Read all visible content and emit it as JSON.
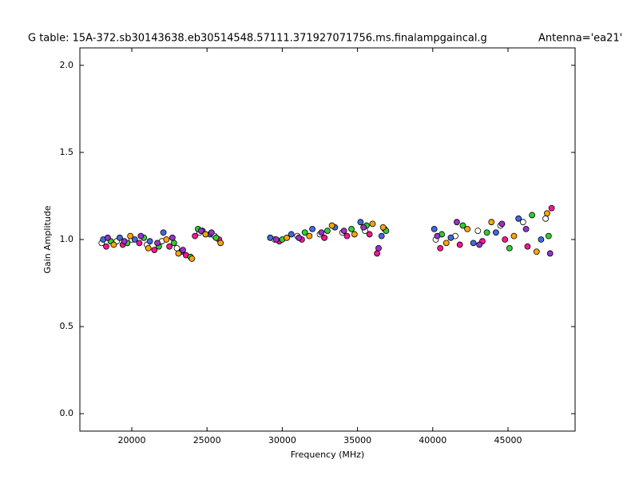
{
  "chart_data": {
    "type": "scatter",
    "title": "G table: 15A-372.sb30143638.eb30514548.57111.371927071756.ms.finalampgaincal.g",
    "annotation": "Antenna='ea21'",
    "x_label": "Frequency (MHz)",
    "y_label": "Gain Amplitude",
    "xlim": [
      16550,
      49460
    ],
    "ylim": [
      -0.1,
      2.1
    ],
    "xticks": [
      20000,
      25000,
      30000,
      35000,
      40000,
      45000
    ],
    "yticks": [
      {
        "value": 0,
        "label": "0.0"
      },
      {
        "value": 0.5,
        "label": "0.5"
      },
      {
        "value": 1,
        "label": "1.0"
      },
      {
        "value": 1.5,
        "label": "1.5"
      },
      {
        "value": 2,
        "label": "2.0"
      }
    ],
    "series": [
      {
        "color": "#ffffff",
        "x": [
          18000,
          19000,
          20000,
          21000,
          22000,
          23000,
          24500,
          25500,
          29500,
          31000,
          32500,
          34000,
          35500,
          36800,
          40200,
          41500,
          43000,
          44500,
          46000,
          47500
        ],
        "values": [
          0.98,
          0.99,
          1.0,
          0.97,
          0.99,
          0.95,
          1.04,
          1.02,
          1.0,
          1.02,
          1.03,
          1.04,
          1.05,
          1.06,
          1.0,
          1.02,
          1.05,
          1.08,
          1.1,
          1.12
        ]
      },
      {
        "color": "#ff1493",
        "x": [
          18300,
          19400,
          20500,
          21500,
          22500,
          23600,
          24200,
          25800,
          29800,
          31300,
          32800,
          34300,
          35800,
          36300,
          40500,
          41800,
          43300,
          44800,
          46300,
          47900
        ],
        "values": [
          0.96,
          0.97,
          0.98,
          0.94,
          0.96,
          0.91,
          1.02,
          1.0,
          0.99,
          1.0,
          1.01,
          1.02,
          1.03,
          0.92,
          0.95,
          0.97,
          0.99,
          1.0,
          0.96,
          1.18
        ]
      },
      {
        "color": "#4169e1",
        "x": [
          18100,
          19200,
          20200,
          21200,
          22100,
          23300,
          24700,
          25200,
          29200,
          30600,
          32000,
          33500,
          35200,
          36600,
          40100,
          41200,
          42700,
          44200,
          45700,
          47200
        ],
        "values": [
          1.0,
          1.01,
          1.0,
          0.99,
          1.04,
          0.93,
          1.05,
          1.03,
          1.01,
          1.03,
          1.06,
          1.07,
          1.1,
          1.02,
          1.06,
          1.01,
          0.98,
          1.04,
          1.12,
          1.0
        ]
      },
      {
        "color": "#32cd32",
        "x": [
          18600,
          19700,
          20800,
          21800,
          22800,
          23900,
          24400,
          25600,
          30000,
          31500,
          33000,
          34600,
          35600,
          36900,
          40600,
          42000,
          43600,
          45100,
          46600,
          47700
        ],
        "values": [
          0.99,
          0.98,
          1.01,
          0.96,
          0.98,
          0.9,
          1.06,
          1.01,
          1.0,
          1.04,
          1.05,
          1.06,
          1.08,
          1.05,
          1.03,
          1.08,
          1.04,
          0.95,
          1.14,
          1.02
        ]
      },
      {
        "color": "#ffa500",
        "x": [
          18800,
          19900,
          21100,
          22300,
          23100,
          24000,
          24900,
          25900,
          30300,
          31800,
          33300,
          34800,
          36000,
          36700,
          40900,
          42300,
          43900,
          45400,
          46900,
          47600
        ],
        "values": [
          0.97,
          1.02,
          0.95,
          1.0,
          0.92,
          0.89,
          1.03,
          0.98,
          1.01,
          1.02,
          1.08,
          1.03,
          1.09,
          1.07,
          0.98,
          1.06,
          1.1,
          1.02,
          0.93,
          1.15
        ]
      },
      {
        "color": "#9932cc",
        "x": [
          18400,
          19500,
          20600,
          21700,
          22700,
          23400,
          24600,
          25300,
          29600,
          31100,
          32600,
          34100,
          35400,
          36400,
          40300,
          41600,
          43100,
          44600,
          46200,
          47800
        ],
        "values": [
          1.01,
          0.99,
          1.02,
          0.98,
          1.01,
          0.94,
          1.05,
          1.04,
          1.0,
          1.01,
          1.04,
          1.05,
          1.07,
          0.95,
          1.02,
          1.1,
          0.97,
          1.09,
          1.06,
          0.92
        ]
      }
    ]
  }
}
